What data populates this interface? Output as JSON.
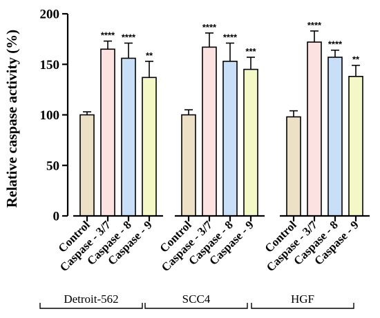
{
  "chart_data": {
    "type": "bar",
    "ylabel": "Relative caspase activity (%)",
    "xlabel": "",
    "ylim": [
      0,
      200
    ],
    "yticks": [
      0,
      50,
      100,
      150,
      200
    ],
    "categories": [
      "Control",
      "Caspase - 3/7",
      "Caspase - 8",
      "Caspase - 9"
    ],
    "category_colors": [
      "#ece1c6",
      "#fde2e2",
      "#c9dff7",
      "#f4f8c6"
    ],
    "groups": [
      {
        "name": "Detroit-562",
        "values": [
          100,
          165,
          156,
          137
        ],
        "errors": [
          3,
          8,
          15,
          16
        ],
        "significance": [
          "",
          "****",
          "****",
          "**"
        ]
      },
      {
        "name": "SCC4",
        "values": [
          100,
          167,
          153,
          145
        ],
        "errors": [
          5,
          14,
          18,
          12
        ],
        "significance": [
          "",
          "****",
          "****",
          "***"
        ]
      },
      {
        "name": "HGF",
        "values": [
          98,
          172,
          157,
          138
        ],
        "errors": [
          6,
          11,
          7,
          11
        ],
        "significance": [
          "",
          "****",
          "****",
          "**"
        ]
      }
    ]
  }
}
